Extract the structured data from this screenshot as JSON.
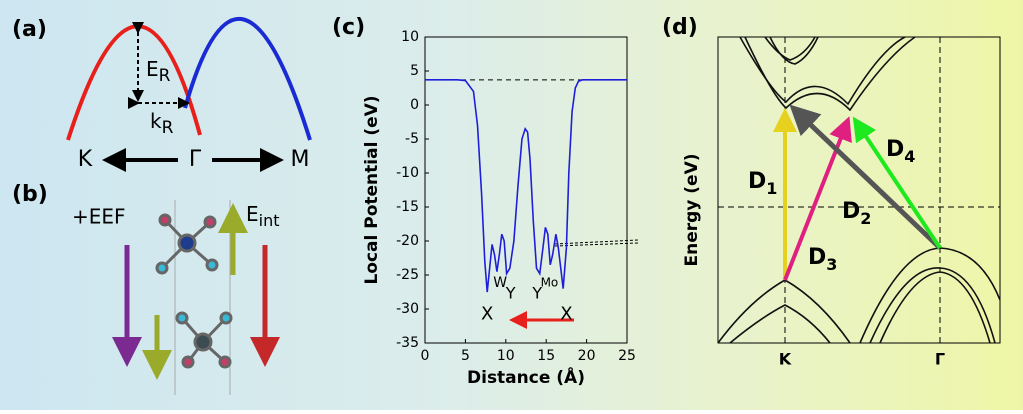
{
  "chart_data": {
    "type": "line",
    "panel_label": "(c)",
    "x_label": "Distance (Å)",
    "y_label": "Local Potential (eV)",
    "x": [
      0,
      2,
      4,
      5,
      6,
      6.5,
      7,
      7.4,
      7.7,
      8,
      8.3,
      8.6,
      8.9,
      9.2,
      9.5,
      9.8,
      10.1,
      10.5,
      11,
      11.5,
      12,
      12.4,
      12.7,
      13,
      13.4,
      13.8,
      14.2,
      14.6,
      14.9,
      15.2,
      15.5,
      15.8,
      16.2,
      16.5,
      16.8,
      17.1,
      17.5,
      17.8,
      18.2,
      18.6,
      19,
      19.5,
      20,
      22,
      25
    ],
    "series": [
      {
        "color": "#1f1fd8",
        "values": [
          3.7,
          3.7,
          3.7,
          3.6,
          2,
          -3,
          -13,
          -23,
          -27.5,
          -24,
          -20.5,
          -22,
          -24.5,
          -22,
          -19,
          -20,
          -24.8,
          -24,
          -20,
          -12,
          -5,
          -3.5,
          -4,
          -8,
          -17,
          -24,
          -24.8,
          -21,
          -18,
          -19,
          -23.5,
          -22,
          -19,
          -21,
          -24,
          -27,
          -21,
          -10,
          -1,
          2.5,
          3.5,
          3.7,
          3.7,
          3.7,
          3.7
        ]
      }
    ],
    "vacuum_level": 3.7,
    "annotations": [
      "X",
      "W",
      "Y",
      "Y",
      "Mo",
      "X"
    ],
    "xlim": [
      0,
      25
    ],
    "xticks": [
      0,
      5,
      10,
      15,
      20,
      25
    ],
    "ylim": [
      -35,
      10
    ],
    "yticks": [
      -35,
      -30,
      -25,
      -20,
      -15,
      -10,
      -5,
      0,
      5,
      10
    ]
  },
  "panel_a": {
    "label": "(a)",
    "energy": {
      "main": "E",
      "sub": "R"
    },
    "momentum": {
      "main": "k",
      "sub": "R"
    },
    "k_left": "K",
    "k_center": "Γ",
    "k_right": "M"
  },
  "panel_b": {
    "label": "(b)",
    "field": "+EEF",
    "internal": {
      "main": "E",
      "sub": "int"
    }
  },
  "panel_d": {
    "label": "(d)",
    "y_label": "Energy (eV)",
    "k_left": "K",
    "k_right": "Γ",
    "transitions": [
      {
        "main": "D",
        "sub": "1"
      },
      {
        "main": "D",
        "sub": "2"
      },
      {
        "main": "D",
        "sub": "3"
      },
      {
        "main": "D",
        "sub": "4"
      }
    ]
  }
}
